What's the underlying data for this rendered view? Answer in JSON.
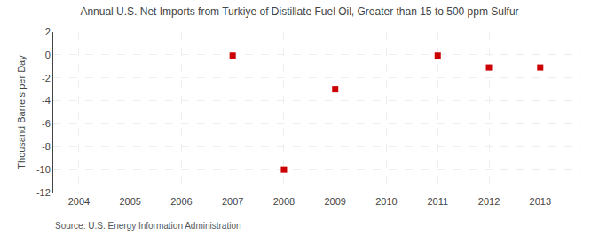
{
  "chart_data": {
    "type": "scatter",
    "title": "Annual U.S. Net Imports from Turkiye of Distillate Fuel Oil, Greater than 15 to 500 ppm Sulfur",
    "ylabel": "Thousand Barrels per Day",
    "annotations": [
      "Source: U.S. Energy Information Administration"
    ],
    "x": [
      2007,
      2008,
      2009,
      2011,
      2012,
      2013
    ],
    "values": [
      -0.07,
      -10.0,
      -3.0,
      -0.07,
      -1.1,
      -1.1
    ],
    "color": "#cc0000",
    "marker": "square",
    "xlim": [
      2003.5,
      2013.8
    ],
    "ylim": [
      -12,
      2
    ],
    "xticks": [
      2004,
      2005,
      2006,
      2007,
      2008,
      2009,
      2010,
      2011,
      2012,
      2013
    ],
    "yticks": [
      2,
      0,
      -2,
      -4,
      -6,
      -8,
      -10,
      -12
    ],
    "grid": true
  }
}
